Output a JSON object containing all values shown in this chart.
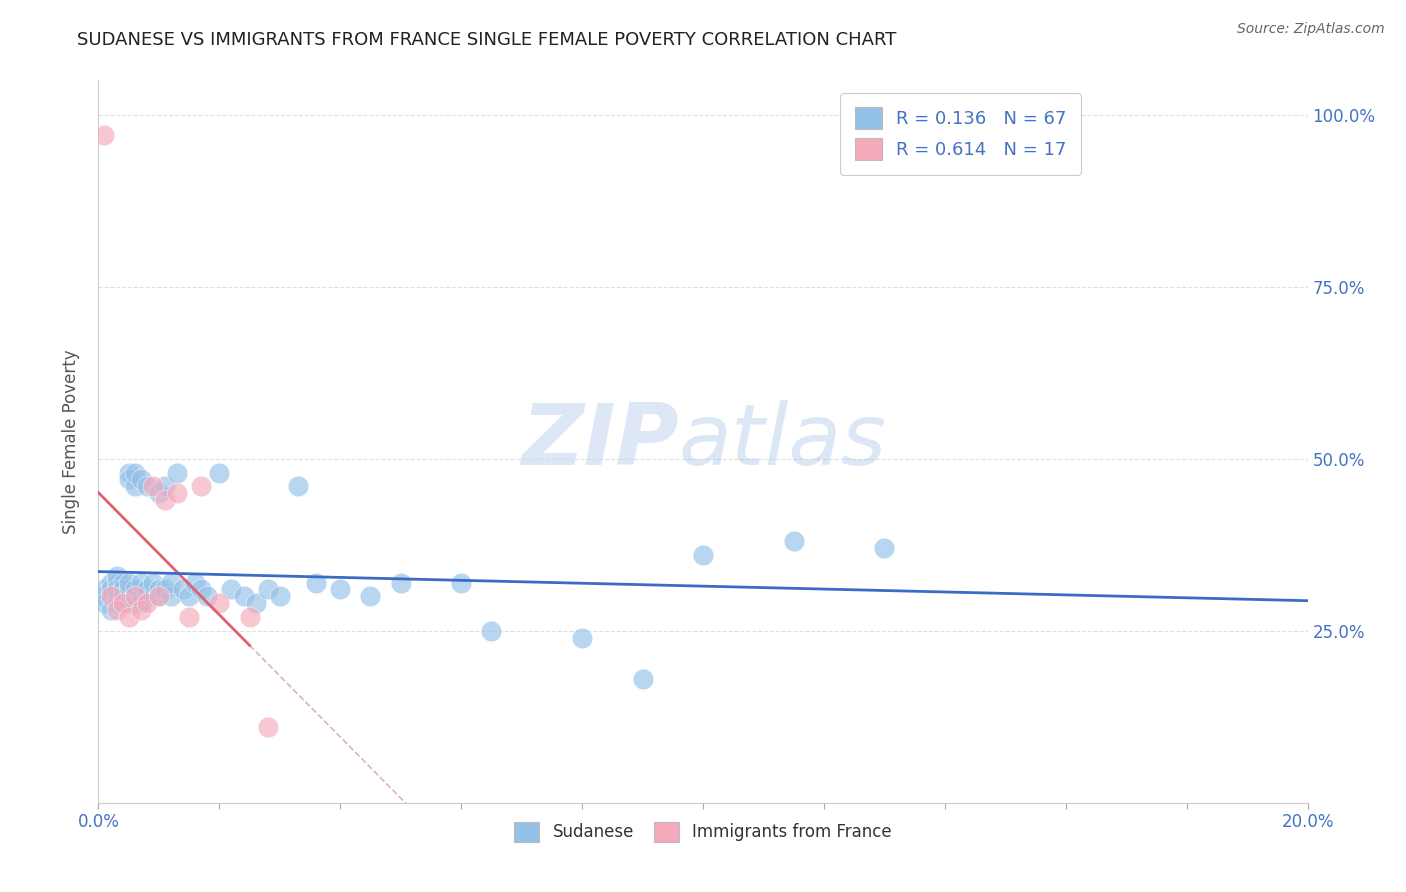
{
  "title": "SUDANESE VS IMMIGRANTS FROM FRANCE SINGLE FEMALE POVERTY CORRELATION CHART",
  "source": "Source: ZipAtlas.com",
  "ylabel": "Single Female Poverty",
  "xlim": [
    0.0,
    0.2
  ],
  "ylim": [
    0.0,
    1.05
  ],
  "xtick_vals": [
    0.0,
    0.02,
    0.04,
    0.06,
    0.08,
    0.1,
    0.12,
    0.14,
    0.16,
    0.18,
    0.2
  ],
  "xtick_labels": [
    "0.0%",
    "",
    "",
    "",
    "",
    "",
    "",
    "",
    "",
    "",
    "20.0%"
  ],
  "ytick_vals": [
    0.0,
    0.25,
    0.5,
    0.75,
    1.0
  ],
  "ytick_labels_right": [
    "",
    "25.0%",
    "50.0%",
    "75.0%",
    "100.0%"
  ],
  "R_sudanese": 0.136,
  "N_sudanese": 67,
  "R_france": 0.614,
  "N_france": 17,
  "blue_scatter_color": "#94C1E8",
  "pink_scatter_color": "#F4AABB",
  "blue_line_color": "#3B6BC7",
  "pink_line_color": "#E06070",
  "ref_line_color": "#E0B0C0",
  "legend_text_color": "#4472C4",
  "watermark_zip": "ZIP",
  "watermark_atlas": "atlas",
  "title_color": "#222222",
  "axis_tick_color": "#4472C4",
  "source_color": "#666666",
  "background_color": "#FFFFFF",
  "grid_color": "#DDDDDD",
  "sudanese_x": [
    0.001,
    0.001,
    0.001,
    0.002,
    0.002,
    0.002,
    0.002,
    0.003,
    0.003,
    0.003,
    0.003,
    0.003,
    0.004,
    0.004,
    0.004,
    0.004,
    0.004,
    0.005,
    0.005,
    0.005,
    0.005,
    0.005,
    0.006,
    0.006,
    0.006,
    0.006,
    0.006,
    0.007,
    0.007,
    0.007,
    0.007,
    0.008,
    0.008,
    0.008,
    0.009,
    0.009,
    0.01,
    0.01,
    0.01,
    0.011,
    0.011,
    0.012,
    0.012,
    0.013,
    0.014,
    0.015,
    0.016,
    0.017,
    0.018,
    0.02,
    0.022,
    0.024,
    0.026,
    0.028,
    0.03,
    0.033,
    0.036,
    0.04,
    0.045,
    0.05,
    0.06,
    0.065,
    0.08,
    0.09,
    0.1,
    0.115,
    0.13
  ],
  "sudanese_y": [
    0.3,
    0.31,
    0.29,
    0.32,
    0.3,
    0.28,
    0.31,
    0.3,
    0.32,
    0.29,
    0.33,
    0.31,
    0.3,
    0.32,
    0.29,
    0.31,
    0.3,
    0.48,
    0.47,
    0.29,
    0.31,
    0.32,
    0.46,
    0.48,
    0.3,
    0.29,
    0.31,
    0.47,
    0.3,
    0.32,
    0.29,
    0.46,
    0.3,
    0.31,
    0.3,
    0.32,
    0.45,
    0.31,
    0.3,
    0.46,
    0.31,
    0.3,
    0.32,
    0.48,
    0.31,
    0.3,
    0.32,
    0.31,
    0.3,
    0.48,
    0.31,
    0.3,
    0.29,
    0.31,
    0.3,
    0.46,
    0.32,
    0.31,
    0.3,
    0.32,
    0.32,
    0.25,
    0.24,
    0.18,
    0.36,
    0.38,
    0.37
  ],
  "france_x": [
    0.001,
    0.002,
    0.003,
    0.004,
    0.005,
    0.006,
    0.007,
    0.008,
    0.009,
    0.01,
    0.011,
    0.013,
    0.015,
    0.017,
    0.02,
    0.025,
    0.028
  ],
  "france_y": [
    0.97,
    0.3,
    0.28,
    0.29,
    0.27,
    0.3,
    0.28,
    0.29,
    0.46,
    0.3,
    0.44,
    0.45,
    0.27,
    0.46,
    0.29,
    0.27,
    0.11
  ]
}
